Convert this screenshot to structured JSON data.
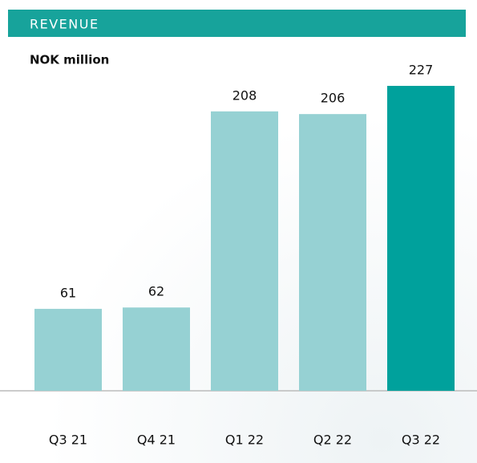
{
  "chart_data": {
    "type": "bar",
    "title": "REVENUE",
    "subtitle": "NOK million",
    "categories": [
      "Q3 21",
      "Q4 21",
      "Q1 22",
      "Q2 22",
      "Q3 22"
    ],
    "values": [
      61,
      62,
      208,
      206,
      227
    ],
    "colors": [
      "#96d1d3",
      "#96d1d3",
      "#96d1d3",
      "#96d1d3",
      "#00a19c"
    ]
  }
}
